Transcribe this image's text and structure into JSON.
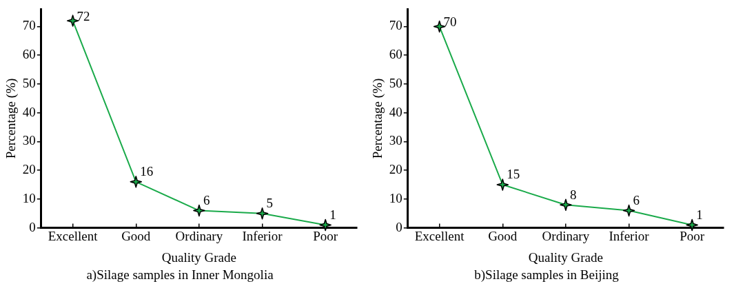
{
  "chart_data": [
    {
      "type": "line",
      "title": "a)Silage samples in Inner Mongolia",
      "xlabel": "Quality Grade",
      "ylabel": "Percentage (%)",
      "categories": [
        "Excellent",
        "Good",
        "Ordinary",
        "Inferior",
        "Poor"
      ],
      "series": [
        {
          "color": "#1aaa4a",
          "values": [
            72,
            16,
            6,
            5,
            1
          ]
        }
      ],
      "ylim": [
        0,
        76
      ],
      "yticks": [
        0,
        10,
        20,
        30,
        40,
        50,
        60,
        70
      ],
      "grid": false,
      "legend": false,
      "marker": "star",
      "line_style": "solid",
      "data_labels": true
    },
    {
      "type": "line",
      "title": "b)Silage samples in Beijing",
      "xlabel": "Quality Grade",
      "ylabel": "Percentage (%)",
      "categories": [
        "Excellent",
        "Good",
        "Ordinary",
        "Inferior",
        "Poor"
      ],
      "series": [
        {
          "color": "#1aaa4a",
          "values": [
            70,
            15,
            8,
            6,
            1
          ]
        }
      ],
      "ylim": [
        0,
        76
      ],
      "yticks": [
        0,
        10,
        20,
        30,
        40,
        50,
        60,
        70
      ],
      "grid": false,
      "legend": false,
      "marker": "star",
      "line_style": "solid",
      "data_labels": true
    }
  ]
}
